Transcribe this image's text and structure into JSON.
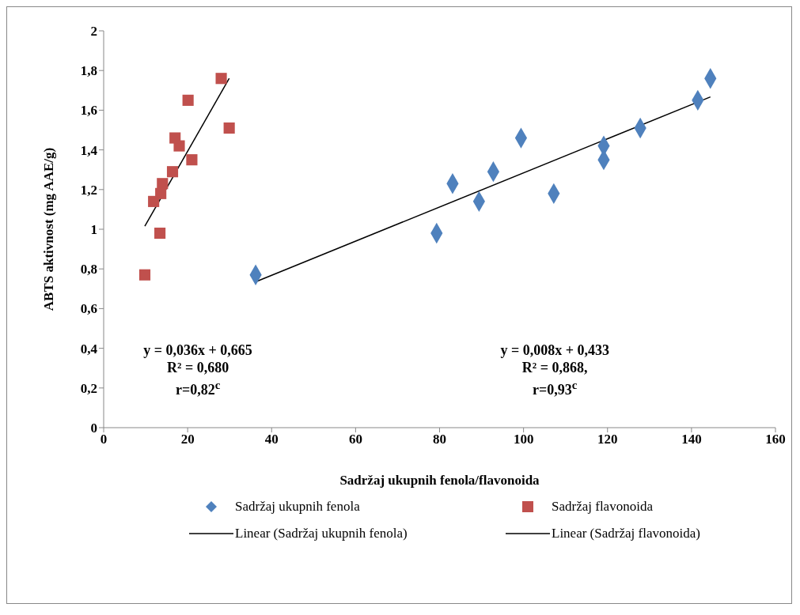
{
  "chart_data": {
    "type": "scatter",
    "xlabel": "Sadržaj ukupnih  fenola/flavonoida",
    "ylabel": "ABTS aktivnost (mg AAE/g)",
    "series": [
      {
        "name": "Sadržaj ukupnih fenola",
        "marker": "diamond",
        "color": "#4f81bd",
        "x": [
          36.2,
          79.3,
          83.1,
          89.4,
          92.8,
          99.4,
          107.2,
          119.1,
          119.1,
          127.8,
          141.5,
          144.5
        ],
        "values": [
          0.77,
          0.98,
          1.23,
          1.14,
          1.29,
          1.46,
          1.18,
          1.42,
          1.35,
          1.51,
          1.65,
          1.76
        ]
      },
      {
        "name": "Sadržaj flavonoida",
        "marker": "square",
        "color": "#c0504d",
        "x": [
          9.8,
          13.4,
          11.9,
          13.6,
          14.0,
          16.4,
          21.0,
          18.0,
          17.0,
          29.9,
          20.1,
          28.0
        ],
        "values": [
          0.77,
          0.98,
          1.14,
          1.18,
          1.23,
          1.29,
          1.35,
          1.42,
          1.46,
          1.51,
          1.65,
          1.76
        ]
      },
      {
        "name": "Linear (Sadržaj ukupnih fenola)",
        "type": "line",
        "color": "#000000",
        "x": [
          36.2,
          144.5
        ],
        "values": [
          0.735,
          1.667
        ]
      },
      {
        "name": "Linear (Sadržaj flavonoida)",
        "type": "line",
        "color": "#000000",
        "x": [
          9.8,
          29.9
        ],
        "values": [
          1.015,
          1.76
        ]
      }
    ],
    "xlim": [
      0,
      160
    ],
    "xticks": [
      0,
      20,
      40,
      60,
      80,
      100,
      120,
      140,
      160
    ],
    "ylim": [
      0,
      2
    ],
    "yticks": [
      0,
      {
        "value": 0.2,
        "label": "0,2"
      },
      {
        "value": 0.4,
        "label": "0,4"
      },
      {
        "value": 0.6,
        "label": "0,6"
      },
      {
        "value": 0.8,
        "label": "0,8"
      },
      1,
      {
        "value": 1.2,
        "label": "1,2"
      },
      {
        "value": 1.4,
        "label": "1,4"
      },
      {
        "value": 1.6,
        "label": "1,6"
      },
      {
        "value": 1.8,
        "label": "1,8"
      },
      2
    ],
    "annotations": [
      "y = 0,036x + 0,665\nR² = 0,680\nr=0,82$^{c}$",
      "y = 0,008x + 0,433\nR² = 0,868,\nr=0,93$^{c}$"
    ],
    "legend": "bottom",
    "grid": false
  }
}
